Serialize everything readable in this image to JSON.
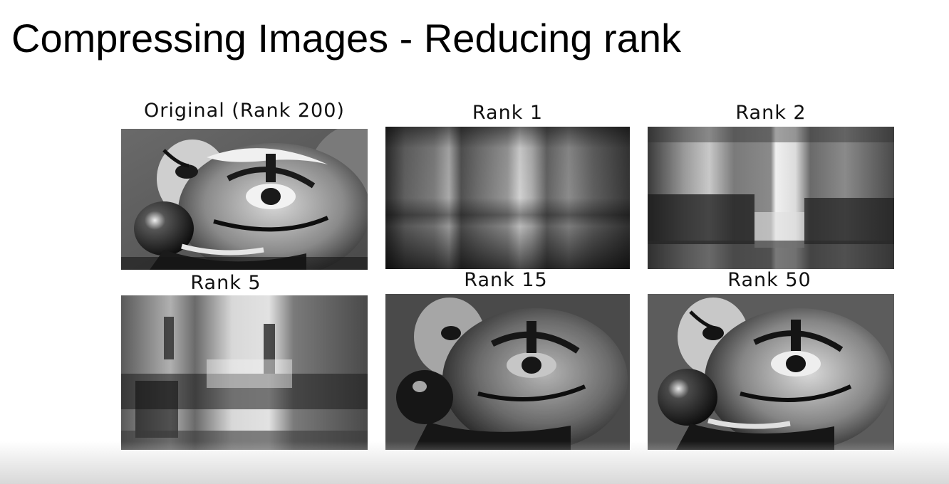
{
  "slide": {
    "title": "Compressing Images - Reducing rank"
  },
  "figure": {
    "panels": [
      {
        "label": "Original (Rank 200)",
        "rank": 200
      },
      {
        "label": "Rank 1",
        "rank": 1
      },
      {
        "label": "Rank 2",
        "rank": 2
      },
      {
        "label": "Rank 5",
        "rank": 5
      },
      {
        "label": "Rank 15",
        "rank": 15
      },
      {
        "label": "Rank 50",
        "rank": 50
      }
    ]
  }
}
